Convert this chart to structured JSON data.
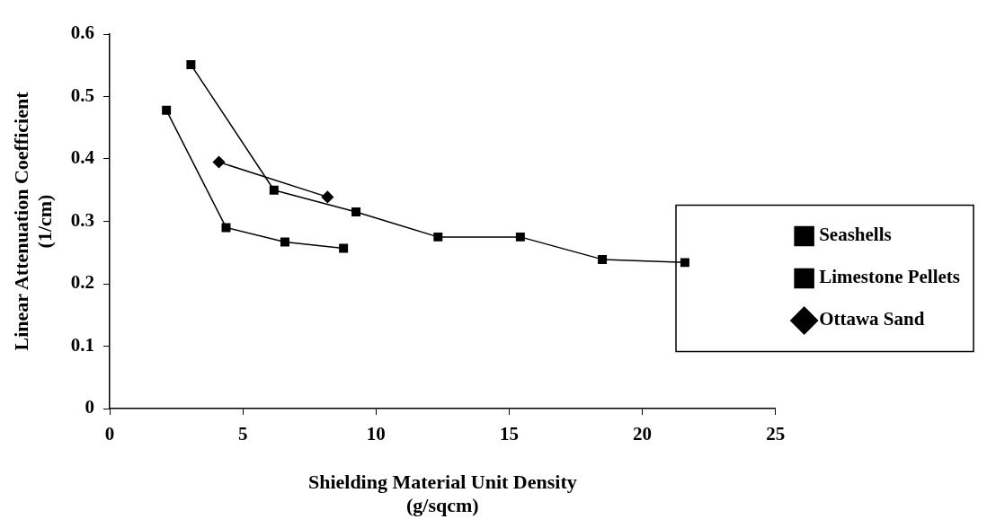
{
  "chart_data": {
    "type": "line",
    "xlabel": "Shielding Material Unit Density (g/sqcm)",
    "ylabel": "Linear Attenuation Coefficient (1/cm)",
    "xlim": [
      0,
      25
    ],
    "xticks": [
      0,
      5,
      10,
      15,
      20,
      25
    ],
    "ylim": [
      0,
      0.6
    ],
    "yticks": [
      0,
      0.1,
      0.2,
      0.3,
      0.4,
      0.5,
      0.6
    ],
    "grid": false,
    "legend": "right",
    "line_style": "solid",
    "series": [
      {
        "name": "Seashells",
        "color": "#000000",
        "marker": "square",
        "x": [
          2.13,
          4.37,
          6.58,
          8.78
        ],
        "values": [
          0.478,
          0.29,
          0.267,
          0.257
        ]
      },
      {
        "name": "Limestone Pellets",
        "color": "#000000",
        "marker": "square",
        "x": [
          3.05,
          6.17,
          9.25,
          12.33,
          15.42,
          18.5,
          21.6
        ],
        "values": [
          0.551,
          0.35,
          0.315,
          0.275,
          0.275,
          0.239,
          0.234
        ]
      },
      {
        "name": "Ottawa Sand",
        "color": "#000000",
        "marker": "diamond",
        "x": [
          4.1,
          8.18
        ],
        "values": [
          0.395,
          0.339
        ]
      }
    ]
  }
}
